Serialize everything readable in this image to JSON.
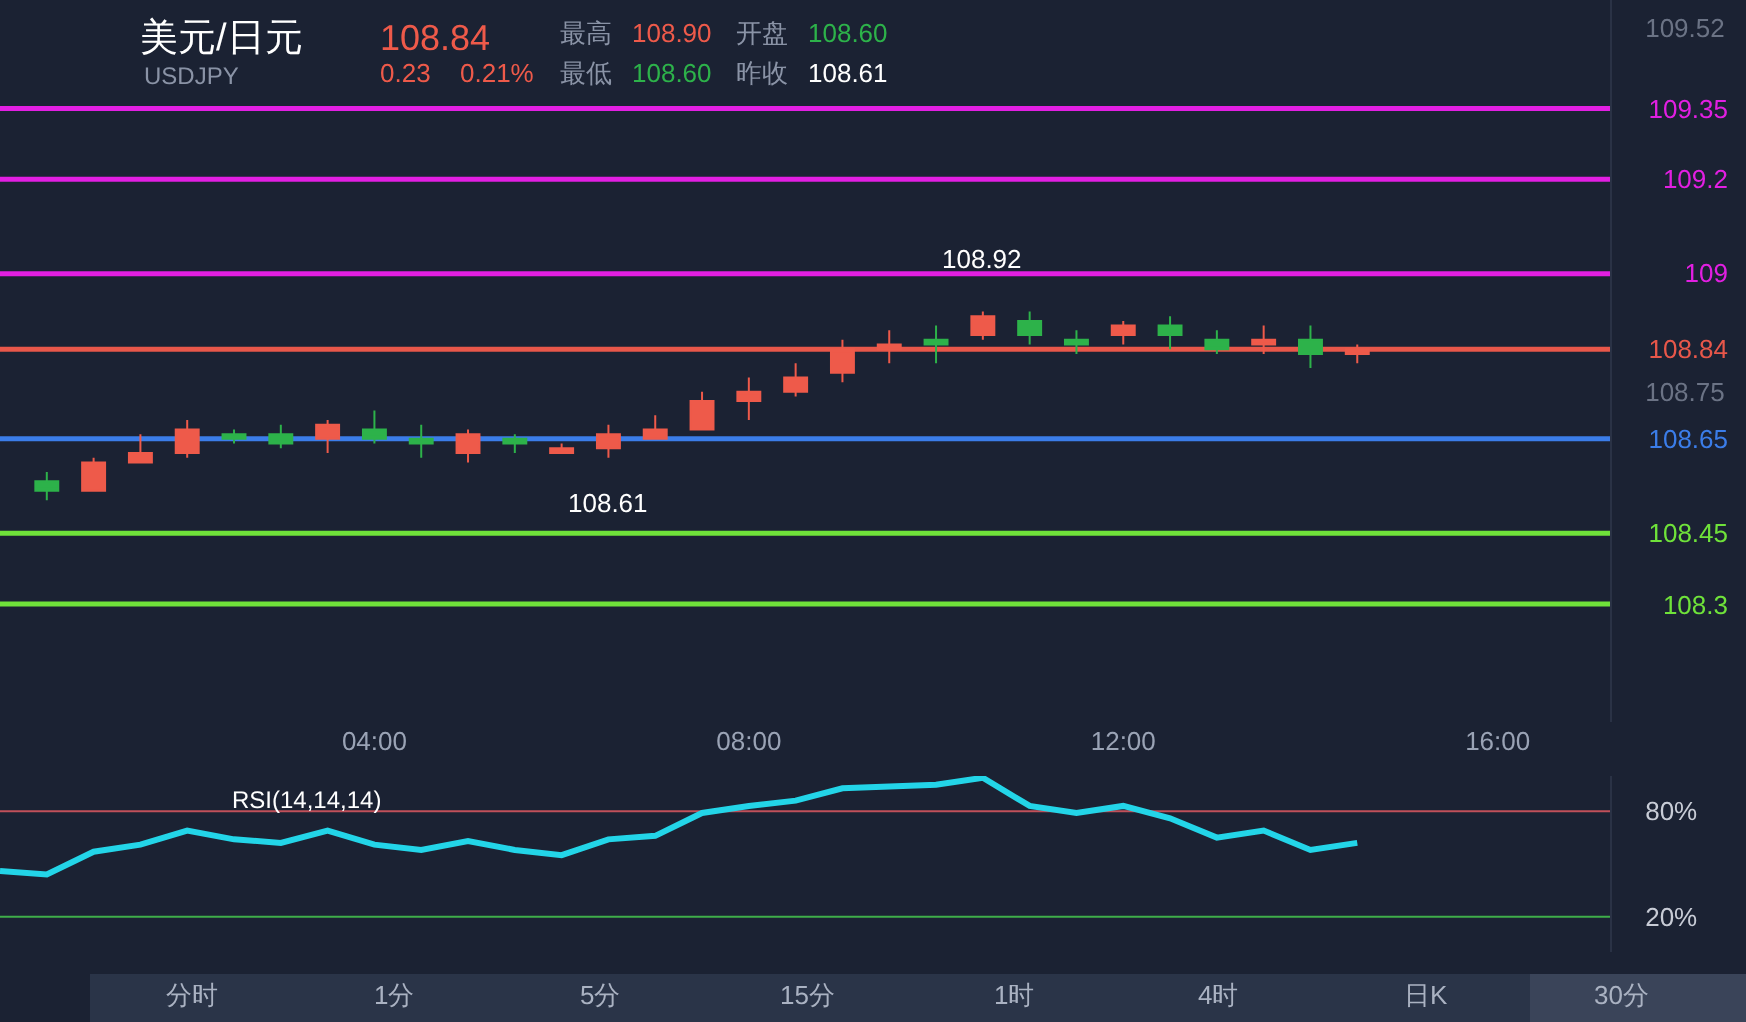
{
  "chart_data": [
    {
      "type": "candlestick",
      "title": "美元/日元",
      "subtitle": "USDJPY",
      "annotations": [
        "108.84",
        "0.23",
        "0.21%",
        "最高",
        "108.90",
        "开盘",
        "108.60",
        "最低",
        "108.60",
        "昨收",
        "108.61",
        {
          "text": "108.92",
          "x": 10.5,
          "y": 108.92
        },
        {
          "text": "108.61",
          "x": 6.5,
          "y": 108.61
        }
      ],
      "x": [
        0.5,
        1,
        1.5,
        2,
        2.5,
        3,
        3.5,
        4,
        4.5,
        5,
        5.5,
        6,
        6.5,
        7,
        7.5,
        8,
        8.5,
        9,
        9.5,
        10,
        10.5,
        11,
        11.5,
        12,
        12.5,
        13,
        13.5,
        14,
        14.5
      ],
      "ohlc": [
        [
          108.56,
          108.58,
          108.52,
          108.54
        ],
        [
          108.54,
          108.61,
          108.54,
          108.6
        ],
        [
          108.6,
          108.66,
          108.6,
          108.62
        ],
        [
          108.62,
          108.69,
          108.61,
          108.67
        ],
        [
          108.66,
          108.67,
          108.64,
          108.65
        ],
        [
          108.66,
          108.68,
          108.63,
          108.64
        ],
        [
          108.65,
          108.69,
          108.62,
          108.68
        ],
        [
          108.67,
          108.71,
          108.64,
          108.65
        ],
        [
          108.65,
          108.68,
          108.61,
          108.64
        ],
        [
          108.62,
          108.67,
          108.6,
          108.66
        ],
        [
          108.65,
          108.66,
          108.62,
          108.64
        ],
        [
          108.62,
          108.64,
          108.62,
          108.63
        ],
        [
          108.63,
          108.68,
          108.61,
          108.66
        ],
        [
          108.65,
          108.7,
          108.65,
          108.67
        ],
        [
          108.67,
          108.75,
          108.67,
          108.73
        ],
        [
          108.73,
          108.78,
          108.69,
          108.75
        ],
        [
          108.75,
          108.81,
          108.74,
          108.78
        ],
        [
          108.79,
          108.86,
          108.77,
          108.84
        ],
        [
          108.84,
          108.88,
          108.81,
          108.85
        ],
        [
          108.86,
          108.89,
          108.81,
          108.85
        ],
        [
          108.87,
          108.92,
          108.86,
          108.91
        ],
        [
          108.9,
          108.92,
          108.85,
          108.87
        ],
        [
          108.86,
          108.88,
          108.83,
          108.85
        ],
        [
          108.87,
          108.9,
          108.85,
          108.89
        ],
        [
          108.89,
          108.91,
          108.84,
          108.87
        ],
        [
          108.86,
          108.88,
          108.83,
          108.84
        ],
        [
          108.85,
          108.89,
          108.83,
          108.86
        ],
        [
          108.86,
          108.89,
          108.8,
          108.83
        ],
        [
          108.83,
          108.85,
          108.81,
          108.84
        ]
      ],
      "xlim": [
        0,
        17.2
      ],
      "xticks": [
        {
          "value": 4,
          "label": "04:00"
        },
        {
          "value": 8,
          "label": "08:00"
        },
        {
          "value": 12,
          "label": "12:00"
        },
        {
          "value": 16,
          "label": "16:00"
        }
      ],
      "ylim": [
        108.05,
        109.58
      ],
      "yticks": [
        109.52,
        108.75
      ],
      "tick_labels": "xy",
      "ref_lines": [
        {
          "axis": "y",
          "value": 109.35,
          "label": "109.35",
          "color": "#e21fe2"
        },
        {
          "axis": "y",
          "value": 109.2,
          "label": "109.2",
          "color": "#e21fe2"
        },
        {
          "axis": "y",
          "value": 109,
          "label": "109",
          "color": "#e21fe2"
        },
        {
          "axis": "y",
          "value": 108.84,
          "label": "108.84",
          "color": "#e8574a"
        },
        {
          "axis": "y",
          "value": 108.65,
          "label": "108.65",
          "color": "#3b7de9"
        },
        {
          "axis": "y",
          "value": 108.45,
          "label": "108.45",
          "color": "#6fe23a"
        },
        {
          "axis": "y",
          "value": 108.3,
          "label": "108.3",
          "color": "#6fe23a"
        }
      ],
      "grid": false
    },
    {
      "type": "line",
      "title": "RSI(14,14,14)",
      "x": [
        0,
        0.5,
        1,
        1.5,
        2,
        2.5,
        3,
        3.5,
        4,
        4.5,
        5,
        5.5,
        6,
        6.5,
        7,
        7.5,
        8,
        8.5,
        9,
        9.5,
        10,
        10.5,
        11,
        11.5,
        12,
        12.5,
        13,
        13.5,
        14,
        14.5
      ],
      "series": [
        {
          "color": "#23d5e8",
          "values": [
            46,
            44,
            57,
            61,
            69,
            64,
            62,
            69,
            61,
            58,
            63,
            58,
            55,
            64,
            66,
            79,
            83,
            86,
            93,
            94,
            95,
            99,
            83,
            79,
            83,
            76,
            65,
            69,
            58,
            62
          ]
        }
      ],
      "xlim": [
        0,
        17.2
      ],
      "ylim": [
        0,
        100
      ],
      "yticks": [
        {
          "value": 80,
          "label": "80%"
        },
        {
          "value": 20,
          "label": "20%"
        }
      ],
      "tick_labels": "y",
      "ref_lines": [
        {
          "axis": "y",
          "value": 80,
          "color": "#c0505a"
        },
        {
          "axis": "y",
          "value": 20,
          "color": "#3fae4a"
        }
      ],
      "annotations": [
        "分时",
        "1分",
        "5分",
        "15分",
        "1时",
        "4时",
        "日K",
        "30分"
      ],
      "grid": false
    }
  ]
}
